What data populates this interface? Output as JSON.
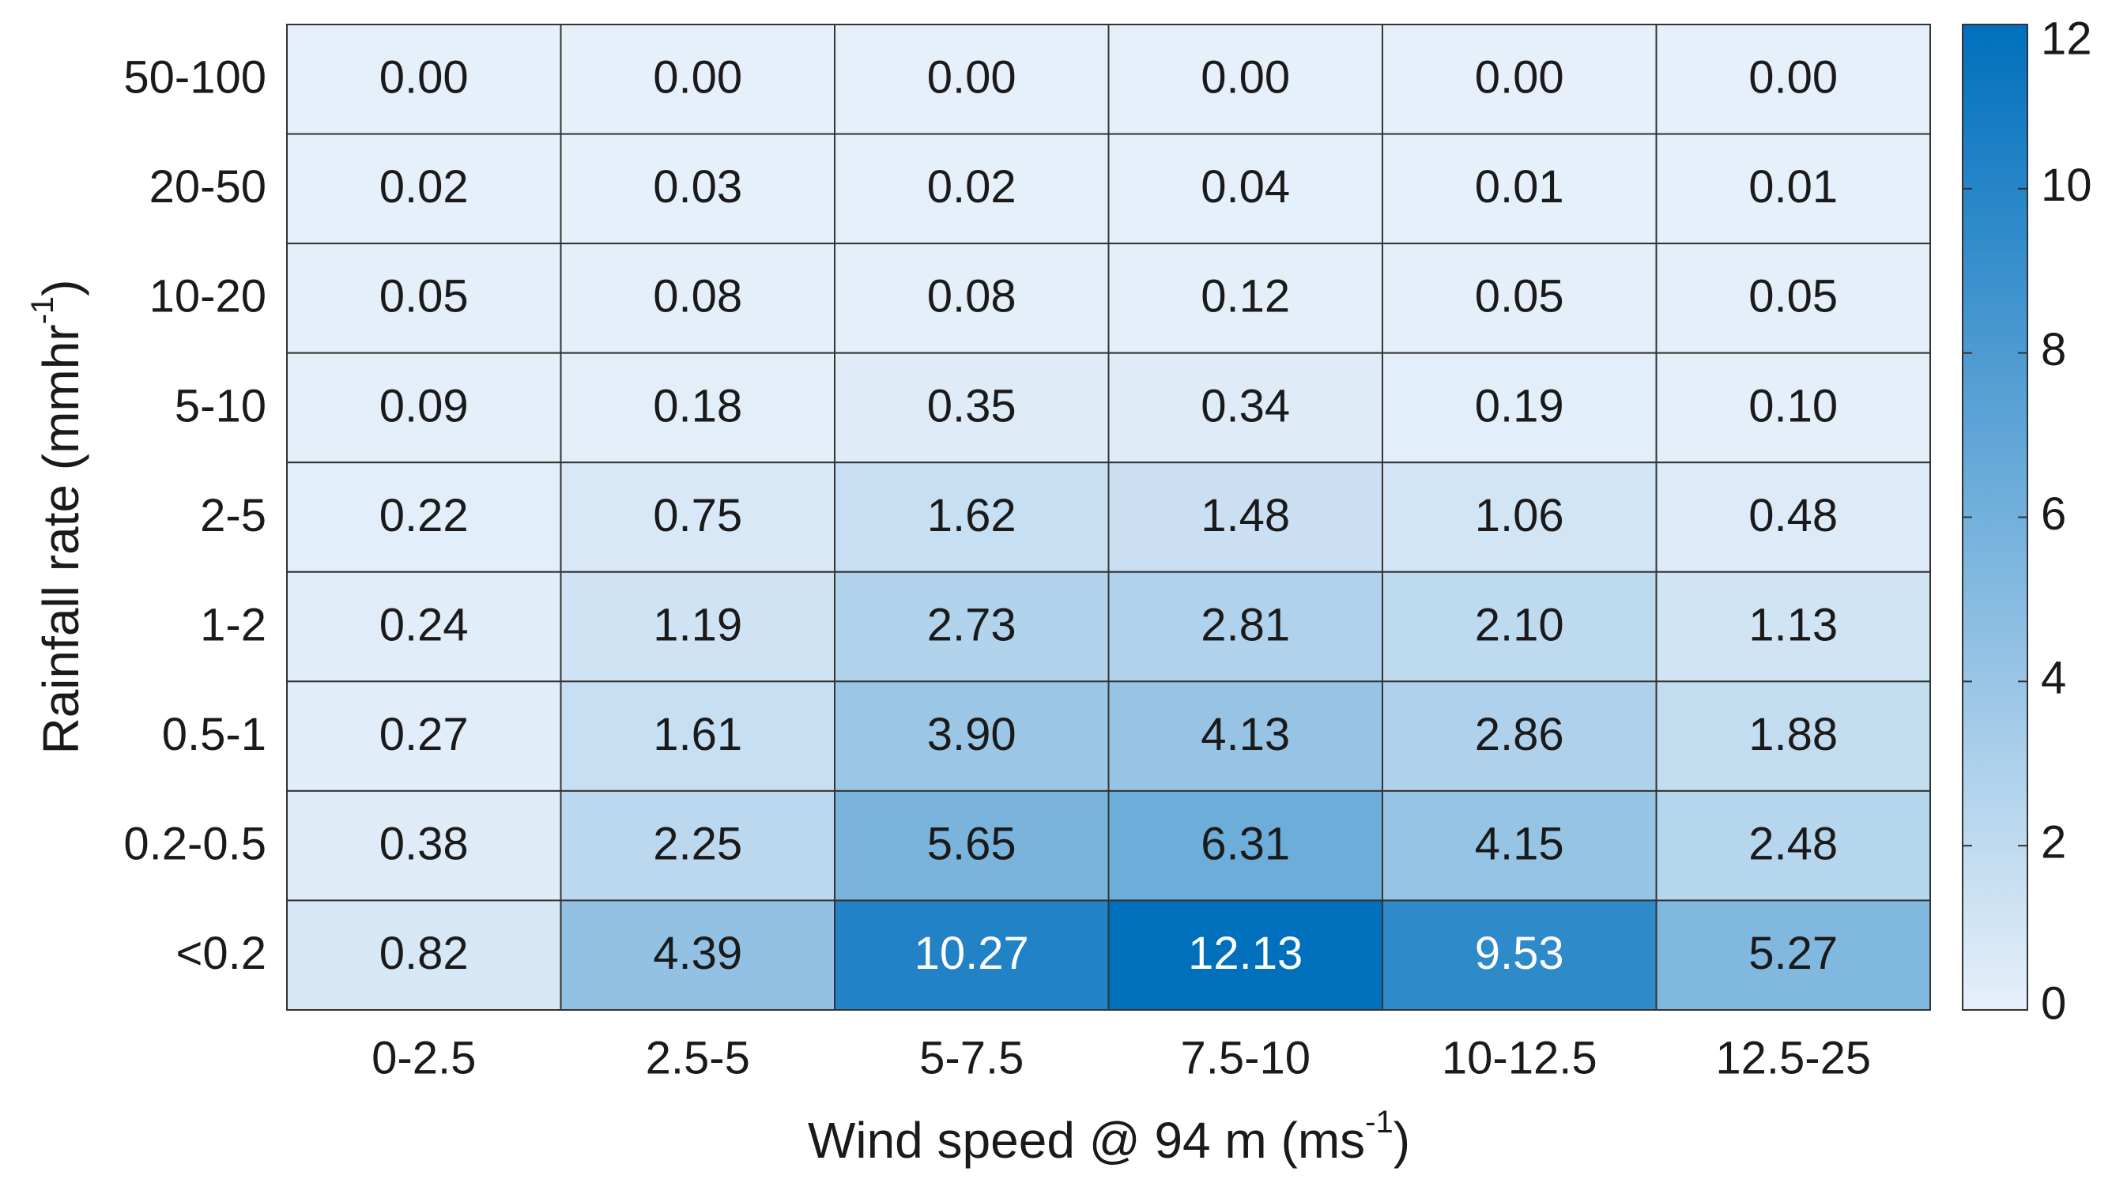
{
  "chart_data": {
    "type": "heatmap",
    "xlabel": [
      "Wind speed @ 94 m (ms",
      "-1",
      ")"
    ],
    "ylabel": [
      "Rainfall rate (mmhr",
      "-1",
      ")"
    ],
    "x_categories": [
      "0-2.5",
      "2.5-5",
      "5-7.5",
      "7.5-10",
      "10-12.5",
      "12.5-25"
    ],
    "y_categories": [
      "50-100",
      "20-50",
      "10-20",
      "5-10",
      "2-5",
      "1-2",
      "0.5-1",
      "0.2-0.5",
      "<0.2"
    ],
    "values": [
      [
        0,
        0,
        0,
        0,
        0,
        0
      ],
      [
        0.02,
        0.03,
        0.02,
        0.04,
        0.01,
        0.01
      ],
      [
        0.05,
        0.08,
        0.08,
        0.12,
        0.05,
        0.05
      ],
      [
        0.09,
        0.18,
        0.35,
        0.34,
        0.19,
        0.1
      ],
      [
        0.22,
        0.75,
        1.62,
        1.48,
        1.06,
        0.48
      ],
      [
        0.24,
        1.19,
        2.73,
        2.81,
        2.1,
        1.13
      ],
      [
        0.27,
        1.61,
        3.9,
        4.13,
        2.86,
        1.88
      ],
      [
        0.38,
        2.25,
        5.65,
        6.31,
        4.15,
        2.48
      ],
      [
        0.82,
        4.39,
        10.27,
        12.13,
        9.53,
        5.27
      ]
    ],
    "value_labels": [
      [
        "0.00",
        "0.00",
        "0.00",
        "0.00",
        "0.00",
        "0.00"
      ],
      [
        "0.02",
        "0.03",
        "0.02",
        "0.04",
        "0.01",
        "0.01"
      ],
      [
        "0.05",
        "0.08",
        "0.08",
        "0.12",
        "0.05",
        "0.05"
      ],
      [
        "0.09",
        "0.18",
        "0.35",
        "0.34",
        "0.19",
        "0.10"
      ],
      [
        "0.22",
        "0.75",
        "1.62",
        "1.48",
        "1.06",
        "0.48"
      ],
      [
        "0.24",
        "1.19",
        "2.73",
        "2.81",
        "2.10",
        "1.13"
      ],
      [
        "0.27",
        "1.61",
        "3.90",
        "4.13",
        "2.86",
        "1.88"
      ],
      [
        "0.38",
        "2.25",
        "5.65",
        "6.31",
        "4.15",
        "2.48"
      ],
      [
        "0.82",
        "4.39",
        "10.27",
        "12.13",
        "9.53",
        "5.27"
      ]
    ],
    "colormap": [
      "#e6f0fa",
      "#0070bd"
    ],
    "clim": [
      0,
      12
    ],
    "cticks": [
      0,
      2,
      4,
      6,
      8,
      10,
      12
    ]
  }
}
